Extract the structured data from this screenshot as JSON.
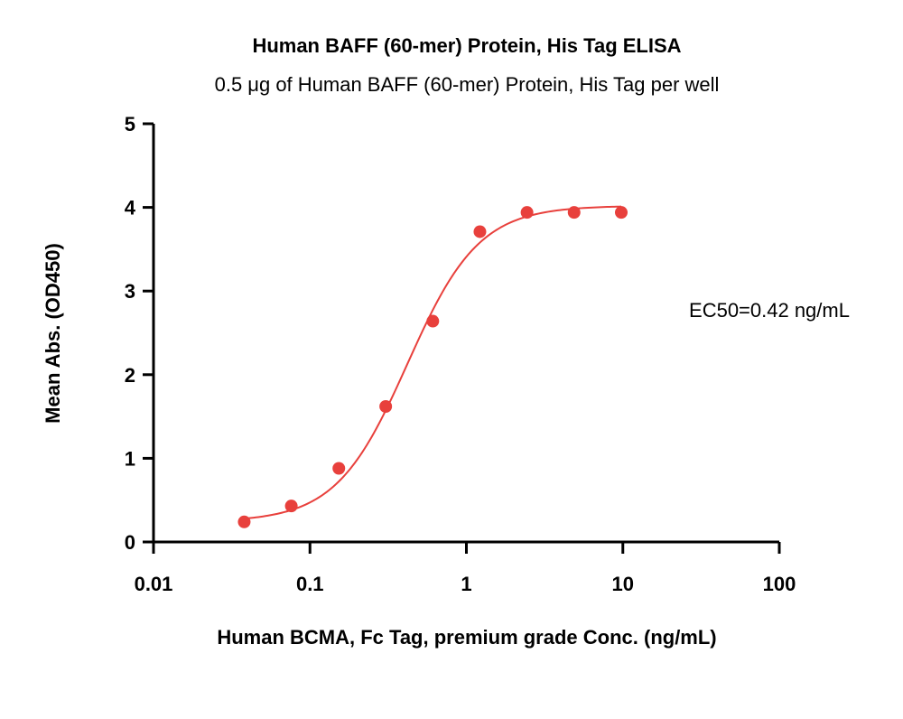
{
  "chart_data": {
    "type": "scatter",
    "title": "Human BAFF (60-mer) Protein, His Tag ELISA",
    "subtitle": "0.5 μg of Human BAFF (60-mer) Protein, His Tag per well",
    "xlabel": "Human BCMA, Fc Tag, premium grade Conc. (ng/mL)",
    "ylabel": "Mean Abs. (OD450)",
    "x_scale": "log",
    "xlim": [
      0.01,
      100
    ],
    "ylim": [
      0,
      5
    ],
    "x_ticks": [
      0.01,
      0.1,
      1,
      10,
      100
    ],
    "x_tick_labels": [
      "0.01",
      "0.1",
      "1",
      "10",
      "100"
    ],
    "y_ticks": [
      0,
      1,
      2,
      3,
      4,
      5
    ],
    "y_tick_labels": [
      "0",
      "1",
      "2",
      "3",
      "4",
      "5"
    ],
    "grid": false,
    "annotation": "EC50=0.42 ng/mL",
    "color": "#e8403c",
    "series": [
      {
        "x": [
          0.038,
          0.076,
          0.153,
          0.305,
          0.61,
          1.22,
          2.44,
          4.88,
          9.77
        ],
        "y": [
          0.24,
          0.43,
          0.88,
          1.62,
          2.64,
          3.71,
          3.94,
          3.94,
          3.94
        ],
        "fit": {
          "model": "4PL",
          "bottom": 0.24,
          "top": 4.02,
          "ec50": 0.42,
          "hill": 1.9,
          "x_range": [
            0.038,
            9.77
          ]
        }
      }
    ]
  }
}
